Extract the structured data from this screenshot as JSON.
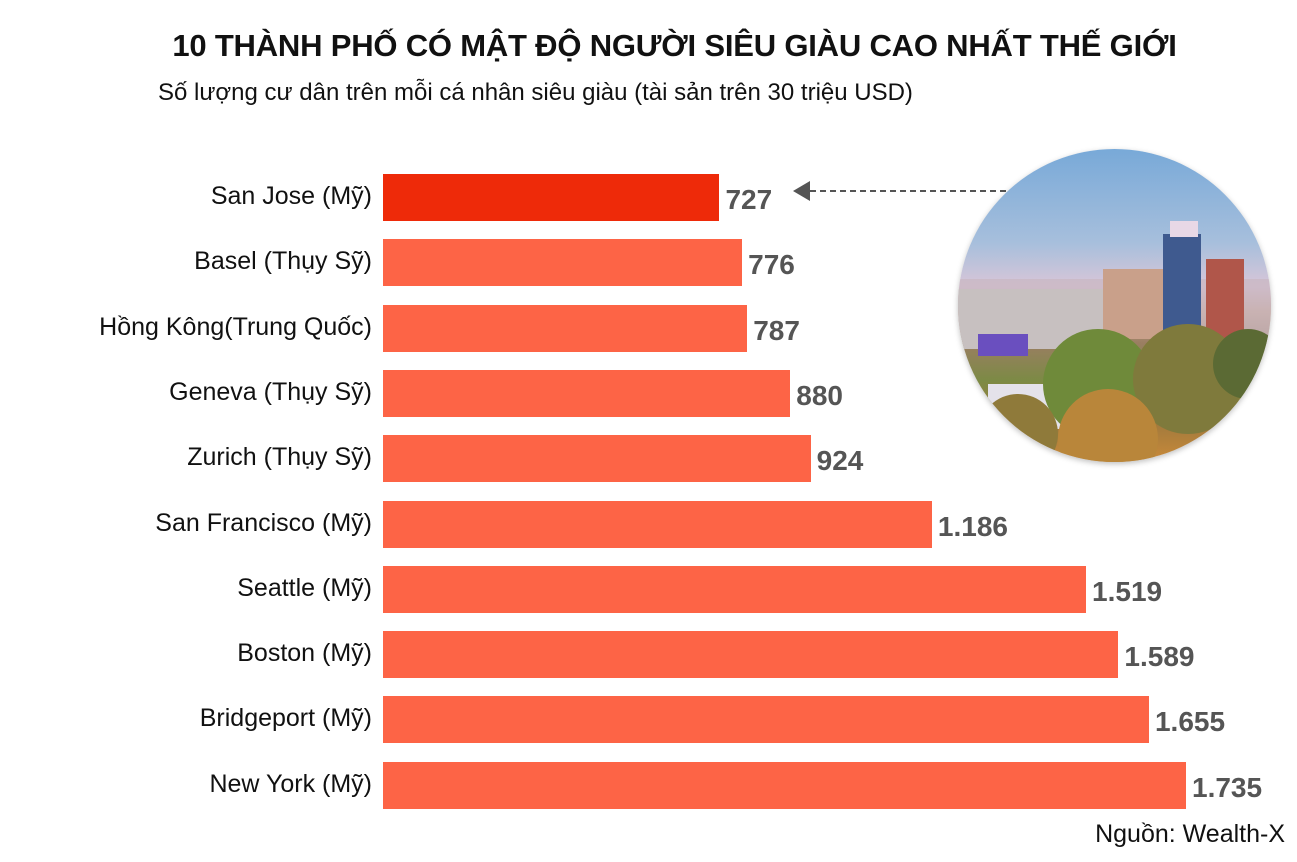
{
  "header": {
    "title": "10 THÀNH PHỐ CÓ MẬT ĐỘ NGƯỜI SIÊU GIÀU CAO NHẤT THẾ GIỚI",
    "subtitle": "Số lượng cư dân trên mỗi cá nhân siêu giàu (tài sản trên 30 triệu USD)"
  },
  "footer": {
    "source": "Nguồn: Wealth-X"
  },
  "colors": {
    "highlight": "#ee2a09",
    "bar": "#fd6446",
    "value_text": "#555555"
  },
  "rows": [
    {
      "label": "San Jose (Mỹ)",
      "value_label": "727",
      "value": 727,
      "highlight": true
    },
    {
      "label": "Basel (Thụy Sỹ)",
      "value_label": "776",
      "value": 776
    },
    {
      "label": "Hồng Kông(Trung Quốc)",
      "value_label": "787",
      "value": 787
    },
    {
      "label": "Geneva (Thụy Sỹ)",
      "value_label": "880",
      "value": 880
    },
    {
      "label": "Zurich (Thụy Sỹ)",
      "value_label": "924",
      "value": 924
    },
    {
      "label": "San Francisco (Mỹ)",
      "value_label": "1.186",
      "value": 1186
    },
    {
      "label": "Seattle (Mỹ)",
      "value_label": "1.519",
      "value": 1519
    },
    {
      "label": "Boston (Mỹ)",
      "value_label": "1.589",
      "value": 1589
    },
    {
      "label": "Bridgeport (Mỹ)",
      "value_label": "1.655",
      "value": 1655
    },
    {
      "label": "New York (Mỹ)",
      "value_label": "1.735",
      "value": 1735
    }
  ],
  "chart_data": {
    "type": "bar",
    "orientation": "horizontal",
    "title": "10 THÀNH PHỐ CÓ MẬT ĐỘ NGƯỜI SIÊU GIÀU CAO NHẤT THẾ GIỚI",
    "subtitle": "Số lượng cư dân trên mỗi cá nhân siêu giàu (tài sản trên 30 triệu USD)",
    "categories": [
      "San Jose (Mỹ)",
      "Basel (Thụy Sỹ)",
      "Hồng Kông(Trung Quốc)",
      "Geneva (Thụy Sỹ)",
      "Zurich (Thụy Sỹ)",
      "San Francisco (Mỹ)",
      "Seattle (Mỹ)",
      "Boston (Mỹ)",
      "Bridgeport (Mỹ)",
      "New York (Mỹ)"
    ],
    "values": [
      727,
      776,
      787,
      880,
      924,
      1186,
      1519,
      1589,
      1655,
      1735
    ],
    "xlabel": "",
    "ylabel": "",
    "grid": false,
    "legend": null,
    "annotations": [
      "Arrow pointing from San Jose photo to 727 bar",
      "Nguồn: Wealth-X"
    ]
  }
}
